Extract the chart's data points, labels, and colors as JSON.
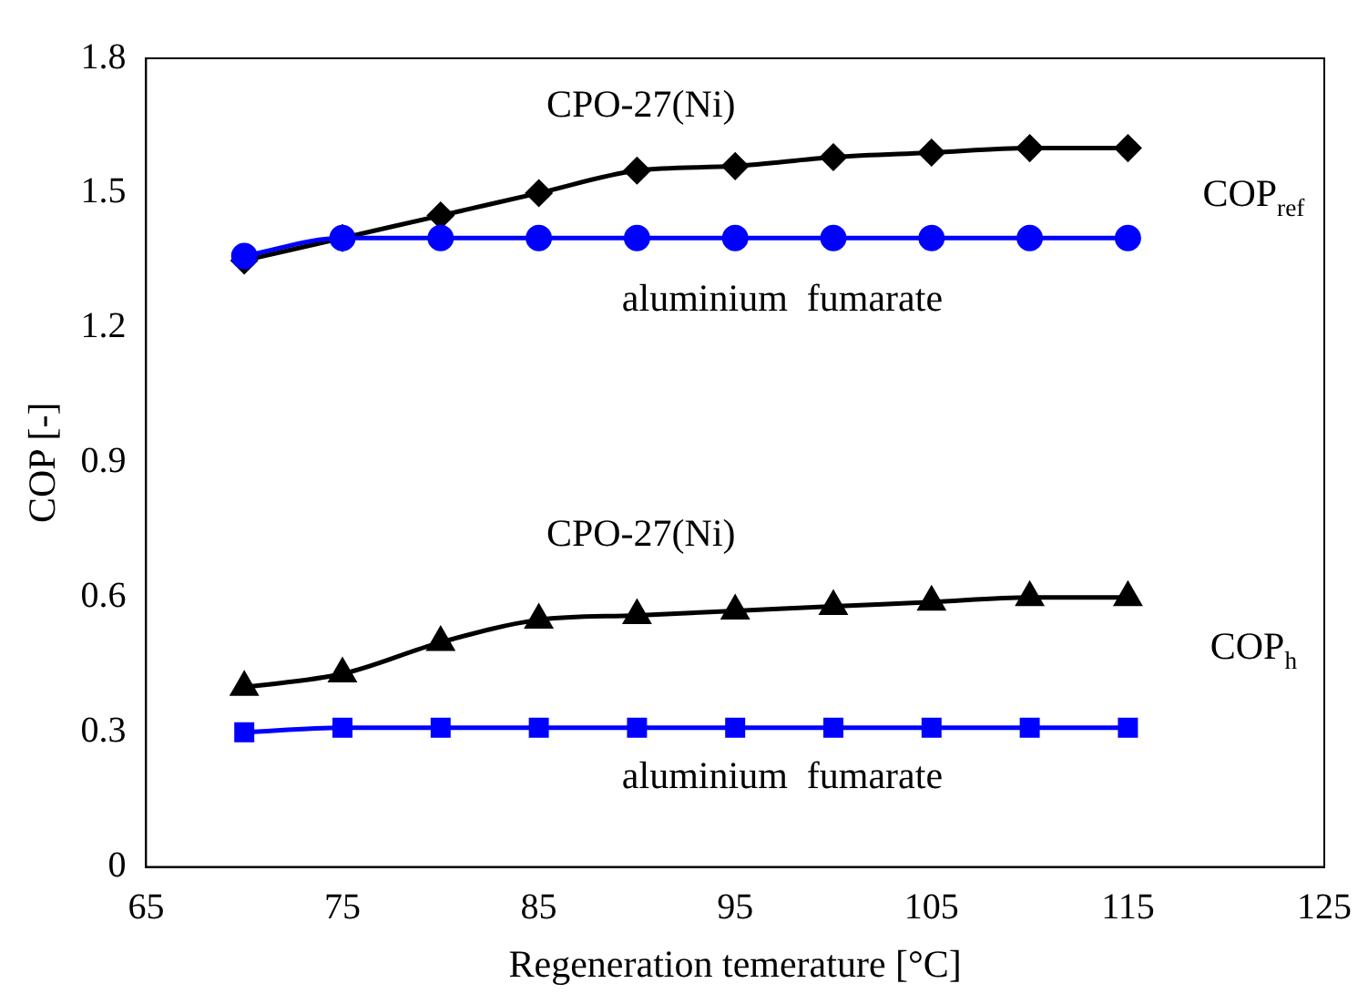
{
  "chart_data": {
    "type": "line",
    "xlabel": "Regeneration temerature [°C]",
    "ylabel": "COP [-]",
    "x": [
      70,
      75,
      80,
      85,
      90,
      95,
      100,
      105,
      110,
      115
    ],
    "xlim": [
      65,
      125
    ],
    "xticks": [
      65,
      75,
      85,
      95,
      105,
      115,
      125
    ],
    "ylim": [
      0,
      1.8
    ],
    "yticks": [
      {
        "value": 0,
        "label": "0"
      },
      {
        "value": 0.3,
        "label": "0.3"
      },
      {
        "value": 0.6,
        "label": "0.6"
      },
      {
        "value": 0.9,
        "label": "0.9"
      },
      {
        "value": 1.2,
        "label": "1.2"
      },
      {
        "value": 1.5,
        "label": "1.5"
      },
      {
        "value": 1.8,
        "label": "1.8"
      }
    ],
    "grid": false,
    "legend": false,
    "line_style": "solid",
    "series": [
      {
        "color": "#000000",
        "marker": "diamond",
        "values": [
          1.35,
          1.4,
          1.45,
          1.5,
          1.55,
          1.56,
          1.58,
          1.59,
          1.6,
          1.6
        ]
      },
      {
        "color": "#0000ff",
        "marker": "circle",
        "values": [
          1.36,
          1.4,
          1.4,
          1.4,
          1.4,
          1.4,
          1.4,
          1.4,
          1.4,
          1.4
        ]
      },
      {
        "color": "#000000",
        "marker": "triangle",
        "values": [
          0.4,
          0.43,
          0.5,
          0.55,
          0.56,
          0.57,
          0.58,
          0.59,
          0.6,
          0.6
        ]
      },
      {
        "color": "#0000ff",
        "marker": "square",
        "values": [
          0.3,
          0.31,
          0.31,
          0.31,
          0.31,
          0.31,
          0.31,
          0.31,
          0.31,
          0.31
        ]
      }
    ],
    "annotations": [
      "CPO-27(Ni)",
      "aluminium  fumarate",
      "COP$_{ref}$",
      "CPO-27(Ni)",
      "aluminium  fumarate",
      "COP$_{h}$"
    ]
  }
}
